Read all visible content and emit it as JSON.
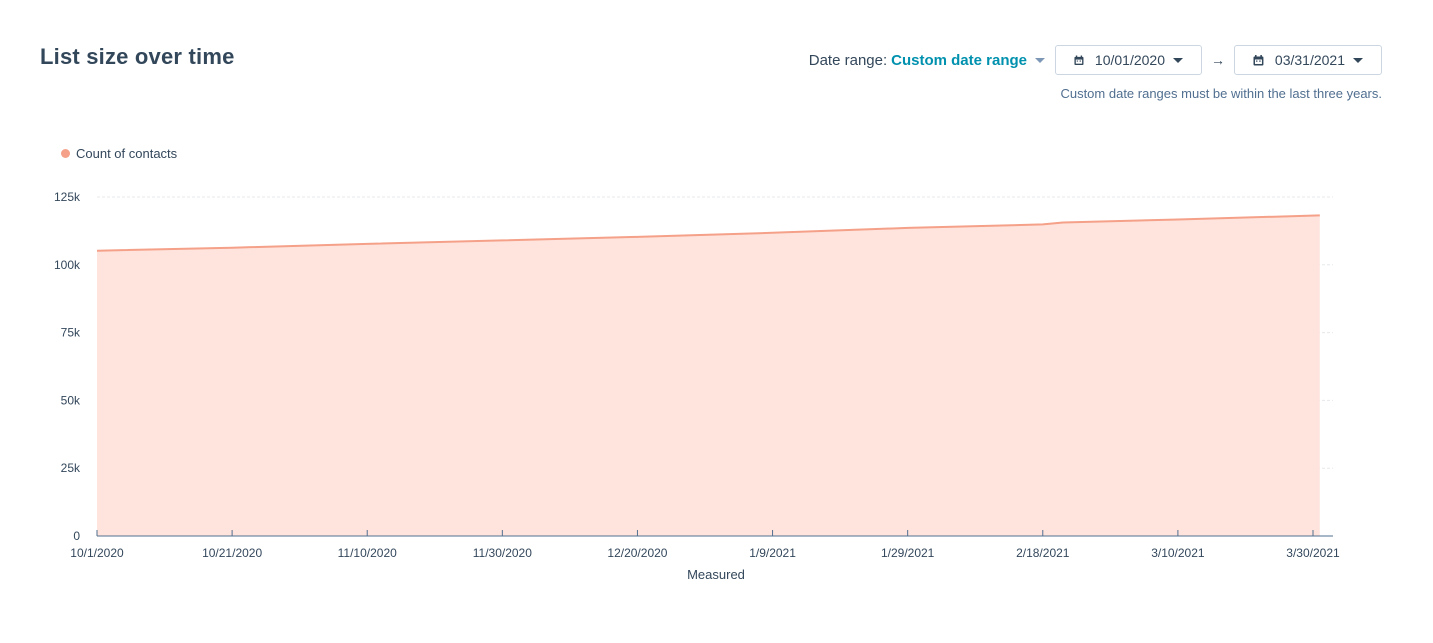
{
  "header": {
    "title": "List size over time",
    "date_range_label": "Date range:",
    "date_range_value": "Custom date range",
    "start_date": "10/01/2020",
    "end_date": "03/31/2021",
    "arrow": "→",
    "hint": "Custom date ranges must be within the last three years."
  },
  "icons": {
    "calendar": "calendar-icon",
    "caret": "caret-down-icon",
    "arrow": "arrow-right-icon"
  },
  "colors": {
    "series_line": "#f5a088",
    "series_fill": "#fee4dd",
    "accent": "#0091ae",
    "grid": "#e5e8eb",
    "axis": "#516f90"
  },
  "chart_data": {
    "type": "area",
    "xlabel": "Measured",
    "ylabel": "",
    "ylim": [
      0,
      125000
    ],
    "y_ticks": [
      0,
      25000,
      50000,
      75000,
      100000,
      125000
    ],
    "y_tick_labels": [
      "0",
      "25k",
      "50k",
      "75k",
      "100k",
      "125k"
    ],
    "x_ticks": [
      "2020-10-01",
      "2020-10-21",
      "2020-11-10",
      "2020-11-30",
      "2020-12-20",
      "2021-01-09",
      "2021-01-29",
      "2021-02-18",
      "2021-03-10",
      "2021-03-30"
    ],
    "x_tick_labels": [
      "10/1/2020",
      "10/21/2020",
      "11/10/2020",
      "11/30/2020",
      "12/20/2020",
      "1/9/2021",
      "1/29/2021",
      "2/18/2021",
      "3/10/2021",
      "3/30/2021"
    ],
    "grid": true,
    "legend": "top-left",
    "series": [
      {
        "name": "Count of contacts",
        "x": [
          "2020-10-01",
          "2020-10-21",
          "2020-11-10",
          "2020-11-30",
          "2020-12-20",
          "2021-01-09",
          "2021-01-29",
          "2021-02-18",
          "2021-02-21",
          "2021-03-10",
          "2021-03-31"
        ],
        "values": [
          105200,
          106300,
          107700,
          109000,
          110300,
          111800,
          113600,
          114900,
          115600,
          116700,
          118200
        ]
      }
    ]
  }
}
